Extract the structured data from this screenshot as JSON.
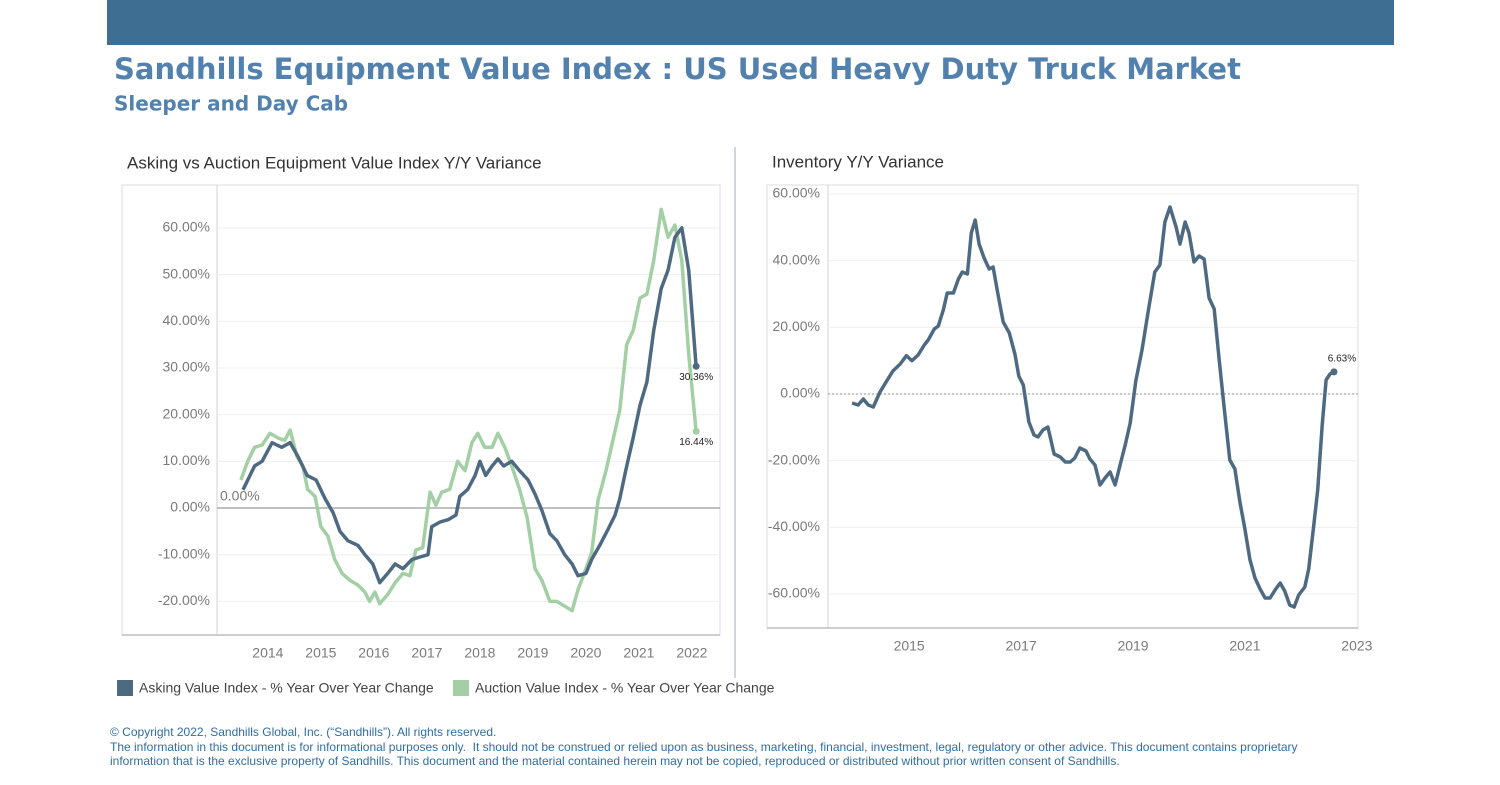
{
  "header": {
    "title": "Sandhills Equipment Value Index : US Used Heavy Duty Truck Market",
    "subtitle": "Sleeper and Day Cab"
  },
  "chart_data": [
    {
      "type": "line",
      "title": "Asking vs Auction Equipment Value Index Y/Y Variance",
      "xlim": [
        2013.04,
        2022.53
      ],
      "xticks": [
        2014,
        2015,
        2016,
        2017,
        2018,
        2019,
        2020,
        2021,
        2022
      ],
      "ylim": [
        -27.2,
        69.2
      ],
      "yticks": [
        {
          "value": -20,
          "label": "-20.00%"
        },
        {
          "value": -10,
          "label": "-10.00%"
        },
        {
          "value": 0,
          "label": "0.00%"
        },
        {
          "value": 10,
          "label": "10.00%"
        },
        {
          "value": 20,
          "label": "20.00%"
        },
        {
          "value": 30,
          "label": "30.00%"
        },
        {
          "value": 40,
          "label": "40.00%"
        },
        {
          "value": 50,
          "label": "50.00%"
        },
        {
          "value": 60,
          "label": "60.00%"
        }
      ],
      "grid": true,
      "legend": "bottom",
      "reference_line": {
        "value": 0,
        "label": "0.00%"
      },
      "series": [
        {
          "name": "Asking Value Index - % Year Over Year Change",
          "color": "#4e6a82",
          "x": [
            2013.53,
            2013.75,
            2013.89,
            2014.08,
            2014.26,
            2014.42,
            2014.57,
            2014.74,
            2014.91,
            2015.08,
            2015.23,
            2015.36,
            2015.51,
            2015.7,
            2015.83,
            2015.98,
            2016.11,
            2016.26,
            2016.4,
            2016.55,
            2016.72,
            2016.87,
            2017.02,
            2017.09,
            2017.25,
            2017.4,
            2017.55,
            2017.62,
            2017.77,
            2017.91,
            2018.0,
            2018.11,
            2018.23,
            2018.34,
            2018.45,
            2018.6,
            2018.75,
            2018.91,
            2019.04,
            2019.17,
            2019.32,
            2019.45,
            2019.6,
            2019.74,
            2019.85,
            2020.0,
            2020.11,
            2020.26,
            2020.42,
            2020.55,
            2020.64,
            2020.75,
            2020.89,
            2021.02,
            2021.15,
            2021.28,
            2021.42,
            2021.55,
            2021.68,
            2021.81,
            2021.94,
            2022.08
          ],
          "values": [
            3.9,
            9,
            10,
            14,
            13,
            14,
            11,
            7,
            6,
            2,
            -1,
            -5,
            -7,
            -8,
            -10,
            -12,
            -16,
            -14,
            -12,
            -13,
            -11,
            -10.5,
            -10,
            -4,
            -3,
            -2.5,
            -1.5,
            2.5,
            4,
            7,
            10,
            7,
            9,
            10.5,
            9,
            10,
            8,
            6,
            3,
            -0.5,
            -5.5,
            -7,
            -10,
            -12,
            -14.5,
            -14,
            -11,
            -8,
            -4.5,
            -1.5,
            2,
            8,
            15,
            22,
            27,
            38,
            47,
            51,
            58,
            60,
            51,
            30.36
          ],
          "end_label": "30.36%"
        },
        {
          "name": "Auction Value Index - % Year Over Year Change",
          "color": "#a3cfa5",
          "x": [
            2013.49,
            2013.62,
            2013.75,
            2013.89,
            2014.04,
            2014.19,
            2014.32,
            2014.42,
            2014.55,
            2014.66,
            2014.75,
            2014.89,
            2015.0,
            2015.13,
            2015.26,
            2015.4,
            2015.55,
            2015.7,
            2015.83,
            2015.92,
            2016.02,
            2016.11,
            2016.26,
            2016.4,
            2016.55,
            2016.68,
            2016.79,
            2016.92,
            2017.06,
            2017.17,
            2017.28,
            2017.43,
            2017.58,
            2017.72,
            2017.85,
            2017.96,
            2018.09,
            2018.23,
            2018.34,
            2018.47,
            2018.6,
            2018.75,
            2018.89,
            2019.04,
            2019.17,
            2019.32,
            2019.45,
            2019.6,
            2019.74,
            2019.85,
            2020.0,
            2020.11,
            2020.23,
            2020.38,
            2020.51,
            2020.64,
            2020.77,
            2020.89,
            2021.02,
            2021.15,
            2021.28,
            2021.42,
            2021.55,
            2021.68,
            2021.81,
            2021.94,
            2022.08
          ],
          "values": [
            6,
            10,
            13,
            13.5,
            16,
            15,
            14.5,
            16.7,
            11,
            9,
            4,
            2.5,
            -4,
            -6,
            -11,
            -14,
            -15.5,
            -16.5,
            -18,
            -20,
            -18,
            -20.5,
            -18.5,
            -16,
            -14,
            -14.5,
            -9,
            -8.5,
            3.4,
            0.6,
            3.4,
            4,
            10,
            8,
            14,
            16,
            13,
            13,
            16,
            13,
            9,
            4,
            -2,
            -13,
            -15.5,
            -20,
            -20,
            -21,
            -22,
            -17.5,
            -13,
            -9.5,
            1.7,
            8,
            14.5,
            21,
            35,
            38,
            45,
            45.8,
            53,
            64,
            58,
            60.6,
            53,
            33,
            16.44
          ],
          "end_label": "16.44%"
        }
      ]
    },
    {
      "type": "line",
      "title": "Inventory Y/Y Variance",
      "xlim": [
        2013.55,
        2023.02
      ],
      "xticks": [
        2015,
        2017,
        2019,
        2021,
        2023
      ],
      "ylim": [
        -70.2,
        62.7
      ],
      "yticks": [
        {
          "value": -60,
          "label": "-60.00%"
        },
        {
          "value": -40,
          "label": "-40.00%"
        },
        {
          "value": -20,
          "label": "-20.00%"
        },
        {
          "value": 0,
          "label": "0.00%"
        },
        {
          "value": 20,
          "label": "20.00%"
        },
        {
          "value": 40,
          "label": "40.00%"
        },
        {
          "value": 60,
          "label": "60.00%"
        }
      ],
      "grid": true,
      "reference_line": {
        "value": 0
      },
      "series": [
        {
          "name": "Inventory",
          "color": "#4e6a82",
          "x": [
            2013.98,
            2014.09,
            2014.18,
            2014.27,
            2014.36,
            2014.48,
            2014.61,
            2014.71,
            2014.84,
            2014.95,
            2015.05,
            2015.16,
            2015.27,
            2015.34,
            2015.45,
            2015.52,
            2015.61,
            2015.68,
            2015.79,
            2015.88,
            2015.95,
            2016.04,
            2016.11,
            2016.18,
            2016.25,
            2016.34,
            2016.43,
            2016.5,
            2016.59,
            2016.68,
            2016.79,
            2016.89,
            2016.96,
            2017.04,
            2017.14,
            2017.23,
            2017.3,
            2017.39,
            2017.48,
            2017.59,
            2017.7,
            2017.79,
            2017.88,
            2017.96,
            2018.05,
            2018.16,
            2018.23,
            2018.32,
            2018.41,
            2018.5,
            2018.59,
            2018.68,
            2018.77,
            2018.86,
            2018.95,
            2019.05,
            2019.16,
            2019.27,
            2019.39,
            2019.48,
            2019.57,
            2019.66,
            2019.77,
            2019.84,
            2019.93,
            2020.0,
            2020.09,
            2020.18,
            2020.27,
            2020.36,
            2020.45,
            2020.54,
            2020.63,
            2020.73,
            2020.82,
            2020.91,
            2021.0,
            2021.09,
            2021.18,
            2021.27,
            2021.36,
            2021.45,
            2021.55,
            2021.63,
            2021.71,
            2021.8,
            2021.88,
            2021.96,
            2022.07,
            2022.14,
            2022.23,
            2022.3,
            2022.38,
            2022.45,
            2022.52,
            2022.59
          ],
          "values": [
            -2.7,
            -3.3,
            -1.5,
            -3.3,
            -3.9,
            0.6,
            4.2,
            6.9,
            9,
            11.5,
            10,
            11.7,
            14.7,
            16.2,
            19.5,
            20.4,
            25.2,
            30.3,
            30.3,
            34.5,
            36.6,
            36,
            48.3,
            52.2,
            45,
            40.8,
            37.5,
            38.1,
            29.7,
            21.6,
            18.3,
            12,
            5.4,
            2.7,
            -8.4,
            -12.3,
            -12.9,
            -10.8,
            -9.9,
            -18,
            -18.9,
            -20.4,
            -20.4,
            -19.2,
            -16.2,
            -17.1,
            -19.5,
            -21.3,
            -27.3,
            -25.2,
            -23.4,
            -27.3,
            -21.3,
            -15.3,
            -8.7,
            3.9,
            13.2,
            24.6,
            36.6,
            38.7,
            51.6,
            56.1,
            50.1,
            45,
            51.6,
            48.3,
            39.6,
            41.4,
            40.5,
            28.8,
            25.5,
            10.2,
            -4.2,
            -19.8,
            -22.5,
            -32.4,
            -40.5,
            -49.8,
            -55.2,
            -58.5,
            -61.2,
            -61.2,
            -58.5,
            -56.7,
            -59.1,
            -63.3,
            -63.9,
            -60.3,
            -57.9,
            -52.5,
            -39.3,
            -28.8,
            -9.3,
            4.2,
            6,
            6.63
          ],
          "end_label": "6.63%"
        }
      ]
    }
  ],
  "footer": {
    "copyright": "© Copyright 2022, Sandhills Global, Inc. (“Sandhills”). All rights reserved.",
    "disclaimer": [
      "The information in this document is for informational purposes only.  It should not be construed or relied upon as business, marketing, financial, investment, legal, regulatory or other advice. This document contains proprietary",
      "information that is the exclusive property of Sandhills. This document and the material contained herein may not be copied, reproduced or distributed without prior written consent of Sandhills."
    ]
  }
}
